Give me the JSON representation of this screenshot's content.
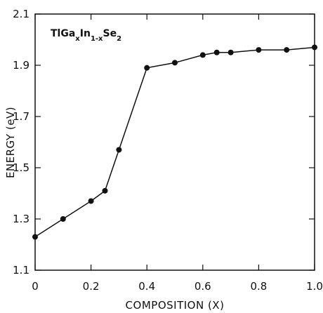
{
  "chart_data": {
    "type": "line",
    "title": "",
    "annotation": {
      "prefix": "TlGa",
      "sub_x": "x",
      "mid": "In",
      "sub_1x": "1-x",
      "suffix": "Se",
      "sub_2": "2"
    },
    "xlabel": "COMPOSITION (X)",
    "ylabel": "ENERGY (eV)",
    "xlim": [
      0,
      1.0
    ],
    "ylim": [
      1.1,
      2.1
    ],
    "xticks": [
      0,
      0.2,
      0.4,
      0.6,
      0.8,
      1.0
    ],
    "xtick_labels": [
      "0",
      "0.2",
      "0.4",
      "0.6",
      "0.8",
      "1.0"
    ],
    "yticks": [
      1.1,
      1.3,
      1.5,
      1.7,
      1.9,
      2.1
    ],
    "ytick_labels": [
      "1.1",
      "1.3",
      "1.5",
      "1.7",
      "1.9",
      "2.1"
    ],
    "grid": false,
    "series": [
      {
        "x": [
          0,
          0.1,
          0.2,
          0.25,
          0.3,
          0.4,
          0.5,
          0.6,
          0.65,
          0.7,
          0.8,
          0.9,
          1.0
        ],
        "y": [
          1.23,
          1.3,
          1.37,
          1.41,
          1.57,
          1.89,
          1.91,
          1.94,
          1.95,
          1.95,
          1.96,
          1.96,
          1.97
        ]
      }
    ],
    "color": "#111111"
  }
}
